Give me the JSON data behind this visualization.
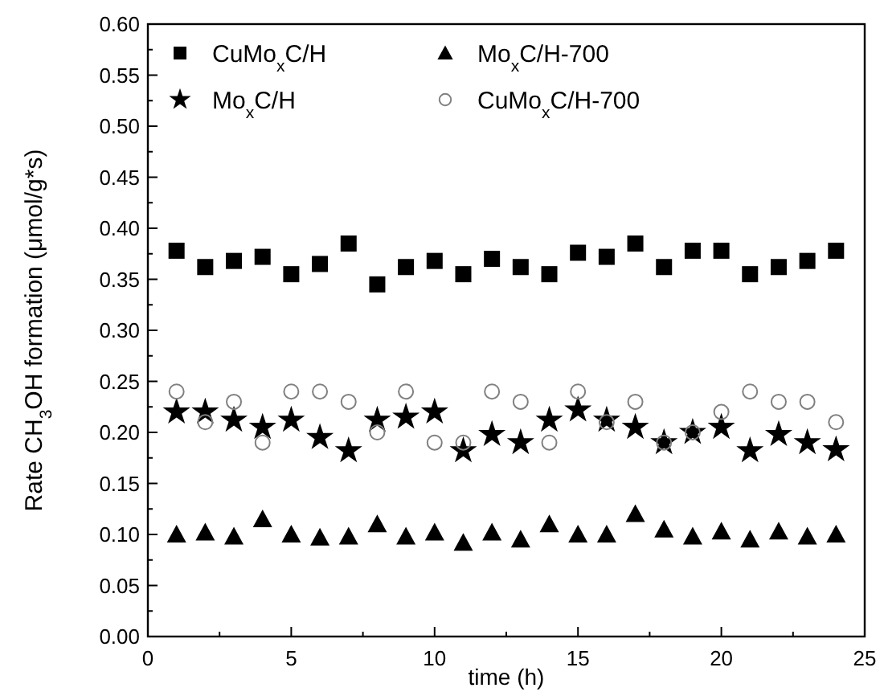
{
  "chart_data": {
    "type": "scatter",
    "xlabel": "time (h)",
    "ylabel": "Rate CH$_{3}$OH formation (μmol/g*s)",
    "x": [
      1,
      2,
      3,
      4,
      5,
      6,
      7,
      8,
      9,
      10,
      11,
      12,
      13,
      14,
      15,
      16,
      17,
      18,
      19,
      20,
      21,
      22,
      23,
      24
    ],
    "series": [
      {
        "name": "CuMo$_{x}$C/H",
        "color": "#000000",
        "marker": "square",
        "values": [
          0.378,
          0.362,
          0.368,
          0.372,
          0.355,
          0.365,
          0.385,
          0.345,
          0.362,
          0.368,
          0.355,
          0.37,
          0.362,
          0.355,
          0.376,
          0.372,
          0.385,
          0.362,
          0.378,
          0.378,
          0.355,
          0.362,
          0.368,
          0.378
        ]
      },
      {
        "name": "Mo$_{x}$C/H",
        "color": "#000000",
        "marker": "star",
        "values": [
          0.22,
          0.22,
          0.212,
          0.205,
          0.212,
          0.195,
          0.182,
          0.212,
          0.215,
          0.22,
          0.182,
          0.198,
          0.19,
          0.212,
          0.222,
          0.212,
          0.205,
          0.19,
          0.2,
          0.205,
          0.182,
          0.198,
          0.19,
          0.183
        ]
      },
      {
        "name": "Mo$_{x}$C/H-700",
        "color": "#000000",
        "marker": "triangle",
        "values": [
          0.1,
          0.102,
          0.098,
          0.115,
          0.1,
          0.097,
          0.098,
          0.11,
          0.098,
          0.102,
          0.092,
          0.102,
          0.095,
          0.11,
          0.1,
          0.1,
          0.12,
          0.105,
          0.098,
          0.103,
          0.095,
          0.103,
          0.098,
          0.1
        ]
      },
      {
        "name": "CuMo$_{x}$C/H-700",
        "color": "#808080",
        "marker": "circle",
        "values": [
          0.24,
          0.21,
          0.23,
          0.19,
          0.24,
          0.24,
          0.23,
          0.2,
          0.24,
          0.19,
          0.19,
          0.24,
          0.23,
          0.19,
          0.24,
          0.21,
          0.23,
          0.19,
          0.2,
          0.22,
          0.24,
          0.23,
          0.23,
          0.21
        ]
      }
    ],
    "xlim": [
      0,
      25
    ],
    "xticks": [
      0,
      5,
      10,
      15,
      20,
      25
    ],
    "ylim": [
      0,
      0.6
    ],
    "yticks": [
      {
        "value": 0,
        "label": "0.00"
      },
      {
        "value": 0.05,
        "label": "0.05"
      },
      {
        "value": 0.1,
        "label": "0.10"
      },
      {
        "value": 0.15,
        "label": "0.15"
      },
      {
        "value": 0.2,
        "label": "0.20"
      },
      {
        "value": 0.25,
        "label": "0.25"
      },
      {
        "value": 0.3,
        "label": "0.30"
      },
      {
        "value": 0.35,
        "label": "0.35"
      },
      {
        "value": 0.4,
        "label": "0.40"
      },
      {
        "value": 0.45,
        "label": "0.45"
      },
      {
        "value": 0.5,
        "label": "0.50"
      },
      {
        "value": 0.55,
        "label": "0.55"
      },
      {
        "value": 0.6,
        "label": "0.60"
      }
    ],
    "legend": "top left",
    "grid": false
  }
}
